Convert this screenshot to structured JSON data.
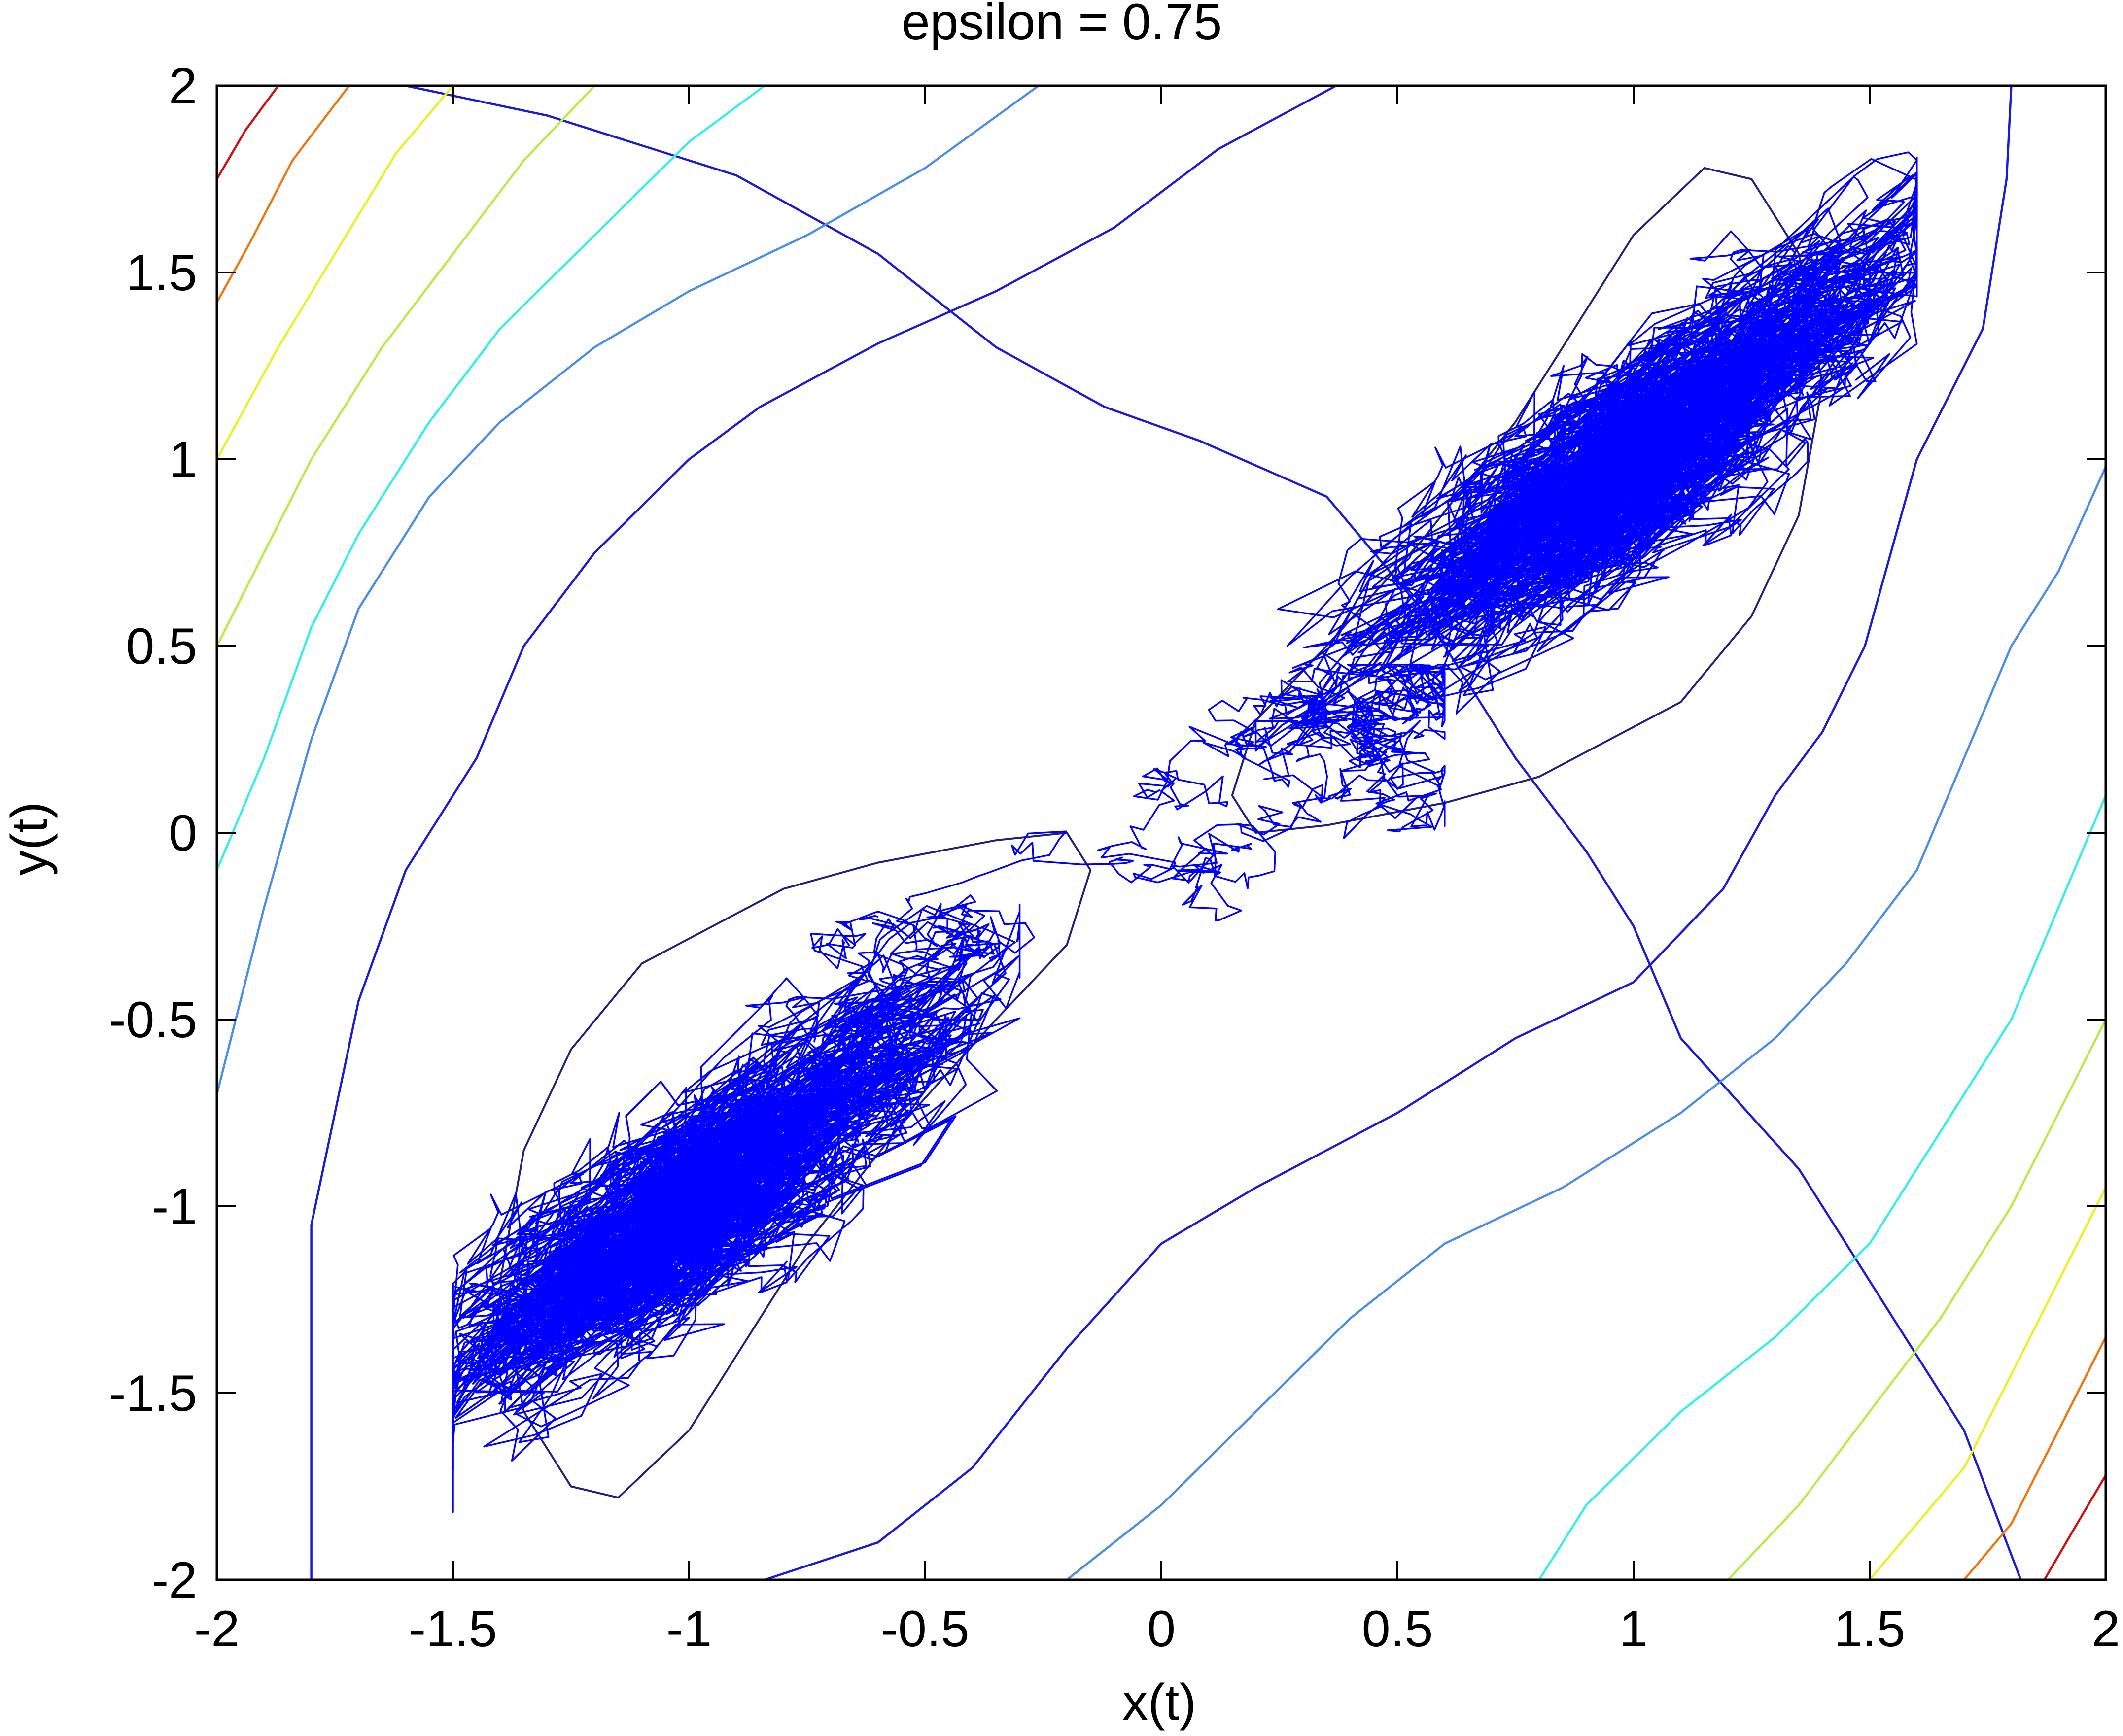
{
  "chart_data": {
    "type": "line",
    "title": "epsilon = 0.75",
    "xlabel": "x(t)",
    "ylabel": "y(t)",
    "xlim": [
      -2,
      2
    ],
    "ylim": [
      -2,
      2
    ],
    "x_ticks": [
      "-2",
      "-1.5",
      "-1",
      "-0.5",
      "0",
      "0.5",
      "1",
      "1.5",
      "2"
    ],
    "y_ticks": [
      "-2",
      "-1.5",
      "-1",
      "-0.5",
      "0",
      "0.5",
      "1",
      "1.5",
      "2"
    ],
    "grid": false,
    "contours": [
      {
        "level": 1,
        "color": "#1a1adb",
        "points": [
          [
            -1.6,
            2
          ],
          [
            -1.3,
            1.92
          ],
          [
            -0.9,
            1.76
          ],
          [
            -0.6,
            1.55
          ],
          [
            -0.35,
            1.3
          ],
          [
            -0.12,
            1.14
          ],
          [
            0.08,
            1.05
          ],
          [
            0.35,
            0.9
          ],
          [
            0.55,
            0.6
          ],
          [
            0.75,
            0.2
          ],
          [
            0.9,
            -0.05
          ],
          [
            1.0,
            -0.25
          ],
          [
            1.1,
            -0.55
          ],
          [
            1.35,
            -0.9
          ],
          [
            1.55,
            -1.3
          ],
          [
            1.7,
            -1.6
          ],
          [
            1.82,
            -2
          ]
        ]
      },
      {
        "level": 2,
        "color": "#1a1adb",
        "points": [
          [
            0.37,
            2
          ],
          [
            0.12,
            1.83
          ],
          [
            -0.1,
            1.62
          ],
          [
            -0.35,
            1.45
          ],
          [
            -0.6,
            1.31
          ],
          [
            -0.85,
            1.14
          ],
          [
            -1.0,
            1.0
          ],
          [
            -1.2,
            0.75
          ],
          [
            -1.35,
            0.5
          ],
          [
            -1.45,
            0.2
          ],
          [
            -1.6,
            -0.1
          ],
          [
            -1.7,
            -0.45
          ],
          [
            -1.75,
            -0.75
          ],
          [
            -1.8,
            -1.05
          ],
          [
            -1.8,
            -2
          ]
        ]
      },
      {
        "level": 3,
        "color": "#1a1adb",
        "points": [
          [
            1.8,
            2
          ],
          [
            1.79,
            1.75
          ],
          [
            1.74,
            1.35
          ],
          [
            1.6,
            1.0
          ],
          [
            1.49,
            0.5
          ],
          [
            1.4,
            0.27
          ],
          [
            1.3,
            0.1
          ],
          [
            1.19,
            -0.15
          ],
          [
            1.0,
            -0.4
          ],
          [
            0.75,
            -0.55
          ],
          [
            0.5,
            -0.75
          ],
          [
            0.2,
            -0.95
          ],
          [
            0.0,
            -1.1
          ],
          [
            -0.2,
            -1.38
          ],
          [
            -0.4,
            -1.7
          ],
          [
            -0.6,
            -1.9
          ],
          [
            -0.84,
            -2
          ]
        ]
      },
      {
        "level": 4,
        "color": "#4a8ee8",
        "points": [
          [
            -0.26,
            2
          ],
          [
            -0.5,
            1.78
          ],
          [
            -0.75,
            1.6
          ],
          [
            -1.0,
            1.45
          ],
          [
            -1.2,
            1.3
          ],
          [
            -1.4,
            1.1
          ],
          [
            -1.55,
            0.9
          ],
          [
            -1.7,
            0.6
          ],
          [
            -1.8,
            0.25
          ],
          [
            -1.9,
            -0.2
          ],
          [
            -1.97,
            -0.55
          ],
          [
            -2,
            -0.7
          ]
        ]
      },
      {
        "level": 4,
        "color": "#4a8ee8",
        "points": [
          [
            2,
            0.98
          ],
          [
            1.9,
            0.7
          ],
          [
            1.8,
            0.5
          ],
          [
            1.7,
            0.2
          ],
          [
            1.6,
            -0.1
          ],
          [
            1.45,
            -0.35
          ],
          [
            1.3,
            -0.55
          ],
          [
            1.1,
            -0.75
          ],
          [
            0.85,
            -0.95
          ],
          [
            0.6,
            -1.1
          ],
          [
            0.4,
            -1.3
          ],
          [
            0.2,
            -1.55
          ],
          [
            0.0,
            -1.8
          ],
          [
            -0.2,
            -2
          ]
        ]
      },
      {
        "level": 5,
        "color": "#33eeee",
        "points": [
          [
            -0.84,
            2
          ],
          [
            -1.0,
            1.85
          ],
          [
            -1.2,
            1.6
          ],
          [
            -1.4,
            1.35
          ],
          [
            -1.55,
            1.1
          ],
          [
            -1.7,
            0.8
          ],
          [
            -1.8,
            0.55
          ],
          [
            -1.9,
            0.2
          ],
          [
            -2,
            -0.1
          ]
        ]
      },
      {
        "level": 5,
        "color": "#33eeee",
        "points": [
          [
            2,
            0.1
          ],
          [
            1.9,
            -0.2
          ],
          [
            1.8,
            -0.5
          ],
          [
            1.65,
            -0.8
          ],
          [
            1.5,
            -1.1
          ],
          [
            1.3,
            -1.35
          ],
          [
            1.1,
            -1.55
          ],
          [
            0.9,
            -1.8
          ],
          [
            0.8,
            -2
          ]
        ]
      },
      {
        "level": 6,
        "color": "#b4ee44",
        "points": [
          [
            -1.2,
            2
          ],
          [
            -1.35,
            1.8
          ],
          [
            -1.5,
            1.55
          ],
          [
            -1.65,
            1.3
          ],
          [
            -1.8,
            1.0
          ],
          [
            -1.9,
            0.75
          ],
          [
            -2,
            0.5
          ]
        ]
      },
      {
        "level": 6,
        "color": "#b4ee44",
        "points": [
          [
            2,
            -0.5
          ],
          [
            1.9,
            -0.75
          ],
          [
            1.8,
            -1.0
          ],
          [
            1.65,
            -1.3
          ],
          [
            1.5,
            -1.55
          ],
          [
            1.35,
            -1.8
          ],
          [
            1.2,
            -2
          ]
        ]
      },
      {
        "level": 7,
        "color": "#eeee22",
        "points": [
          [
            -1.5,
            2
          ],
          [
            -1.62,
            1.82
          ],
          [
            -1.75,
            1.55
          ],
          [
            -1.87,
            1.3
          ],
          [
            -2,
            1.0
          ]
        ]
      },
      {
        "level": 7,
        "color": "#eeee22",
        "points": [
          [
            2,
            -0.95
          ],
          [
            1.9,
            -1.2
          ],
          [
            1.8,
            -1.45
          ],
          [
            1.7,
            -1.7
          ],
          [
            1.5,
            -2
          ]
        ]
      },
      {
        "level": 8,
        "color": "#ee7711",
        "points": [
          [
            -1.72,
            2
          ],
          [
            -1.84,
            1.8
          ],
          [
            -1.93,
            1.58
          ],
          [
            -2,
            1.42
          ]
        ]
      },
      {
        "level": 8,
        "color": "#ee7711",
        "points": [
          [
            2,
            -1.35
          ],
          [
            1.9,
            -1.6
          ],
          [
            1.8,
            -1.85
          ],
          [
            1.7,
            -2
          ]
        ]
      },
      {
        "level": 9,
        "color": "#cc1111",
        "points": [
          [
            -1.87,
            2
          ],
          [
            -1.94,
            1.88
          ],
          [
            -2,
            1.75
          ]
        ]
      },
      {
        "level": 9,
        "color": "#cc1111",
        "points": [
          [
            2,
            -1.72
          ],
          [
            1.93,
            -1.87
          ],
          [
            1.87,
            -2
          ]
        ]
      }
    ],
    "basins": [
      {
        "color": "#202080",
        "points": [
          [
            1.0,
            1.6
          ],
          [
            1.15,
            1.78
          ],
          [
            1.25,
            1.75
          ],
          [
            1.35,
            1.55
          ],
          [
            1.4,
            1.2
          ],
          [
            1.35,
            0.85
          ],
          [
            1.25,
            0.58
          ],
          [
            1.1,
            0.35
          ],
          [
            0.8,
            0.15
          ],
          [
            0.6,
            0.08
          ],
          [
            0.35,
            0.02
          ],
          [
            0.2,
            0.0
          ],
          [
            0.15,
            0.1
          ],
          [
            0.2,
            0.3
          ],
          [
            0.35,
            0.5
          ],
          [
            0.55,
            0.78
          ],
          [
            0.75,
            1.1
          ],
          [
            0.9,
            1.4
          ],
          [
            1.0,
            1.6
          ]
        ]
      },
      {
        "color": "#202080",
        "points": [
          [
            -1.0,
            -1.6
          ],
          [
            -1.15,
            -1.78
          ],
          [
            -1.25,
            -1.75
          ],
          [
            -1.35,
            -1.55
          ],
          [
            -1.4,
            -1.2
          ],
          [
            -1.35,
            -0.85
          ],
          [
            -1.25,
            -0.58
          ],
          [
            -1.1,
            -0.35
          ],
          [
            -0.8,
            -0.15
          ],
          [
            -0.6,
            -0.08
          ],
          [
            -0.35,
            -0.02
          ],
          [
            -0.2,
            0.0
          ],
          [
            -0.15,
            -0.1
          ],
          [
            -0.2,
            -0.3
          ],
          [
            -0.35,
            -0.5
          ],
          [
            -0.55,
            -0.78
          ],
          [
            -0.75,
            -1.1
          ],
          [
            -0.9,
            -1.4
          ],
          [
            -1.0,
            -1.6
          ]
        ]
      }
    ],
    "series": [
      {
        "color": "#0000ff",
        "kind": "random-walk trajectory",
        "clusters": [
          {
            "center": [
              1.0,
              1.0
            ],
            "spread": [
              0.25,
              0.35
            ],
            "extent_x": [
              0.2,
              1.6
            ],
            "extent_y": [
              0.05,
              2.0
            ]
          },
          {
            "center": [
              -1.0,
              -1.0
            ],
            "spread": [
              0.25,
              0.35
            ],
            "extent_x": [
              -1.5,
              -0.3
            ],
            "extent_y": [
              -1.85,
              0.1
            ]
          }
        ],
        "bridge": {
          "x": [
            -0.3,
            0.3
          ],
          "y": [
            -0.5,
            0.35
          ]
        }
      }
    ]
  }
}
